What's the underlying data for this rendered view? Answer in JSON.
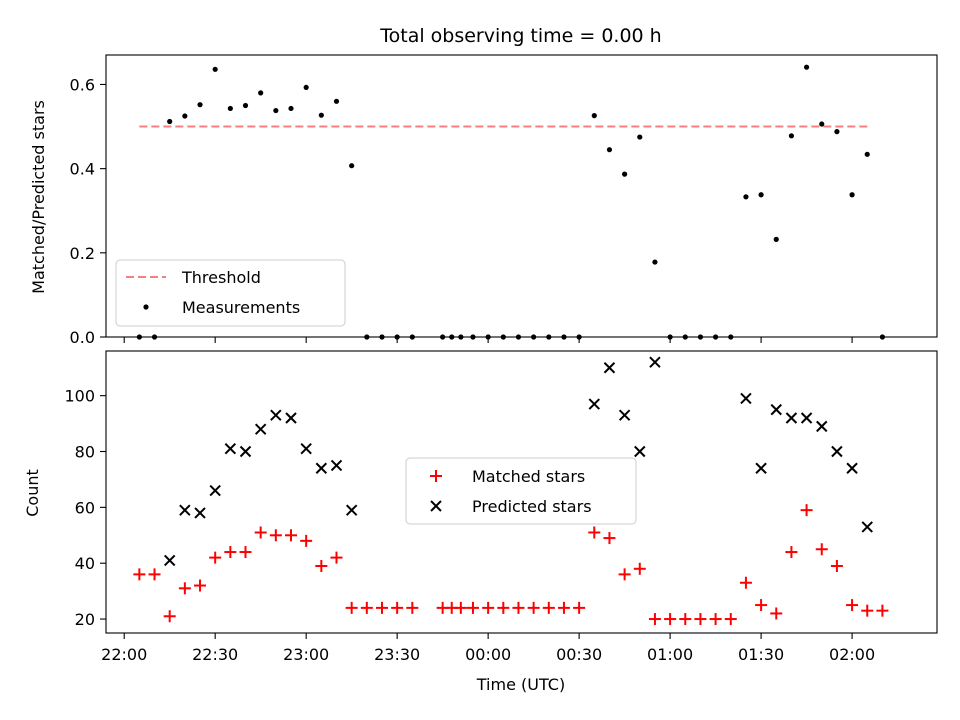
{
  "chart_data": [
    {
      "type": "scatter",
      "title": "Total observing time = 0.00 h",
      "xlabel": "",
      "ylabel": "Matched/Predicted stars",
      "xlim": [
        "21:54",
        "02:28"
      ],
      "ylim": [
        0,
        0.67
      ],
      "yticks": [
        0.0,
        0.2,
        0.4,
        0.6
      ],
      "ytick_labels": [
        "0.0",
        "0.2",
        "0.4",
        "0.6"
      ],
      "legend_position": "lower-left",
      "series": [
        {
          "name": "Threshold",
          "kind": "dashed-line",
          "color": "#f77f7f",
          "points": [
            {
              "x": "22:05",
              "y": 0.5
            },
            {
              "x": "02:05",
              "y": 0.5
            }
          ]
        },
        {
          "name": "Measurements",
          "kind": "dots",
          "color": "#000000",
          "points": [
            {
              "x": "22:05",
              "y": 0.0
            },
            {
              "x": "22:10",
              "y": 0.0
            },
            {
              "x": "22:15",
              "y": 0.512
            },
            {
              "x": "22:20",
              "y": 0.525
            },
            {
              "x": "22:25",
              "y": 0.552
            },
            {
              "x": "22:30",
              "y": 0.636
            },
            {
              "x": "22:35",
              "y": 0.543
            },
            {
              "x": "22:40",
              "y": 0.55
            },
            {
              "x": "22:45",
              "y": 0.58
            },
            {
              "x": "22:50",
              "y": 0.538
            },
            {
              "x": "22:55",
              "y": 0.543
            },
            {
              "x": "23:00",
              "y": 0.593
            },
            {
              "x": "23:05",
              "y": 0.527
            },
            {
              "x": "23:10",
              "y": 0.56
            },
            {
              "x": "23:15",
              "y": 0.407
            },
            {
              "x": "23:20",
              "y": 0.0
            },
            {
              "x": "23:25",
              "y": 0.0
            },
            {
              "x": "23:30",
              "y": 0.0
            },
            {
              "x": "23:35",
              "y": 0.0
            },
            {
              "x": "23:45",
              "y": 0.0
            },
            {
              "x": "23:48",
              "y": 0.0
            },
            {
              "x": "23:51",
              "y": 0.0
            },
            {
              "x": "23:55",
              "y": 0.0
            },
            {
              "x": "00:00",
              "y": 0.0
            },
            {
              "x": "00:05",
              "y": 0.0
            },
            {
              "x": "00:10",
              "y": 0.0
            },
            {
              "x": "00:15",
              "y": 0.0
            },
            {
              "x": "00:20",
              "y": 0.0
            },
            {
              "x": "00:25",
              "y": 0.0
            },
            {
              "x": "00:30",
              "y": 0.0
            },
            {
              "x": "00:35",
              "y": 0.526
            },
            {
              "x": "00:40",
              "y": 0.445
            },
            {
              "x": "00:45",
              "y": 0.387
            },
            {
              "x": "00:50",
              "y": 0.475
            },
            {
              "x": "00:55",
              "y": 0.178
            },
            {
              "x": "01:00",
              "y": 0.0
            },
            {
              "x": "01:05",
              "y": 0.0
            },
            {
              "x": "01:10",
              "y": 0.0
            },
            {
              "x": "01:15",
              "y": 0.0
            },
            {
              "x": "01:20",
              "y": 0.0
            },
            {
              "x": "01:25",
              "y": 0.333
            },
            {
              "x": "01:30",
              "y": 0.338
            },
            {
              "x": "01:35",
              "y": 0.232
            },
            {
              "x": "01:40",
              "y": 0.478
            },
            {
              "x": "01:45",
              "y": 0.641
            },
            {
              "x": "01:50",
              "y": 0.506
            },
            {
              "x": "01:55",
              "y": 0.488
            },
            {
              "x": "02:00",
              "y": 0.338
            },
            {
              "x": "02:05",
              "y": 0.434
            },
            {
              "x": "02:10",
              "y": 0.0
            }
          ]
        }
      ]
    },
    {
      "type": "scatter",
      "title": "",
      "xlabel": "Time (UTC)",
      "ylabel": "Count",
      "xlim": [
        "21:54",
        "02:28"
      ],
      "ylim": [
        15,
        116
      ],
      "xticks": [
        "22:00",
        "22:30",
        "23:00",
        "23:30",
        "00:00",
        "00:30",
        "01:00",
        "01:30",
        "02:00"
      ],
      "yticks": [
        20,
        40,
        60,
        80,
        100
      ],
      "ytick_labels": [
        "20",
        "40",
        "60",
        "80",
        "100"
      ],
      "legend_position": "center",
      "series": [
        {
          "name": "Matched stars",
          "kind": "plus",
          "color": "#ff0000",
          "points": [
            {
              "x": "22:05",
              "y": 36
            },
            {
              "x": "22:10",
              "y": 36
            },
            {
              "x": "22:15",
              "y": 21
            },
            {
              "x": "22:20",
              "y": 31
            },
            {
              "x": "22:25",
              "y": 32
            },
            {
              "x": "22:30",
              "y": 42
            },
            {
              "x": "22:35",
              "y": 44
            },
            {
              "x": "22:40",
              "y": 44
            },
            {
              "x": "22:45",
              "y": 51
            },
            {
              "x": "22:50",
              "y": 50
            },
            {
              "x": "22:55",
              "y": 50
            },
            {
              "x": "23:00",
              "y": 48
            },
            {
              "x": "23:05",
              "y": 39
            },
            {
              "x": "23:10",
              "y": 42
            },
            {
              "x": "23:15",
              "y": 24
            },
            {
              "x": "23:20",
              "y": 24
            },
            {
              "x": "23:25",
              "y": 24
            },
            {
              "x": "23:30",
              "y": 24
            },
            {
              "x": "23:35",
              "y": 24
            },
            {
              "x": "23:45",
              "y": 24
            },
            {
              "x": "23:48",
              "y": 24
            },
            {
              "x": "23:51",
              "y": 24
            },
            {
              "x": "23:55",
              "y": 24
            },
            {
              "x": "00:00",
              "y": 24
            },
            {
              "x": "00:05",
              "y": 24
            },
            {
              "x": "00:10",
              "y": 24
            },
            {
              "x": "00:15",
              "y": 24
            },
            {
              "x": "00:20",
              "y": 24
            },
            {
              "x": "00:25",
              "y": 24
            },
            {
              "x": "00:30",
              "y": 24
            },
            {
              "x": "00:35",
              "y": 51
            },
            {
              "x": "00:40",
              "y": 49
            },
            {
              "x": "00:45",
              "y": 36
            },
            {
              "x": "00:50",
              "y": 38
            },
            {
              "x": "00:55",
              "y": 20
            },
            {
              "x": "01:00",
              "y": 20
            },
            {
              "x": "01:05",
              "y": 20
            },
            {
              "x": "01:10",
              "y": 20
            },
            {
              "x": "01:15",
              "y": 20
            },
            {
              "x": "01:20",
              "y": 20
            },
            {
              "x": "01:25",
              "y": 33
            },
            {
              "x": "01:30",
              "y": 25
            },
            {
              "x": "01:35",
              "y": 22
            },
            {
              "x": "01:40",
              "y": 44
            },
            {
              "x": "01:45",
              "y": 59
            },
            {
              "x": "01:50",
              "y": 45
            },
            {
              "x": "01:55",
              "y": 39
            },
            {
              "x": "02:00",
              "y": 25
            },
            {
              "x": "02:05",
              "y": 23
            },
            {
              "x": "02:10",
              "y": 23
            }
          ]
        },
        {
          "name": "Predicted stars",
          "kind": "x",
          "color": "#000000",
          "points": [
            {
              "x": "22:15",
              "y": 41
            },
            {
              "x": "22:20",
              "y": 59
            },
            {
              "x": "22:25",
              "y": 58
            },
            {
              "x": "22:30",
              "y": 66
            },
            {
              "x": "22:35",
              "y": 81
            },
            {
              "x": "22:40",
              "y": 80
            },
            {
              "x": "22:45",
              "y": 88
            },
            {
              "x": "22:50",
              "y": 93
            },
            {
              "x": "22:55",
              "y": 92
            },
            {
              "x": "23:00",
              "y": 81
            },
            {
              "x": "23:05",
              "y": 74
            },
            {
              "x": "23:10",
              "y": 75
            },
            {
              "x": "23:15",
              "y": 59
            },
            {
              "x": "00:35",
              "y": 97
            },
            {
              "x": "00:40",
              "y": 110
            },
            {
              "x": "00:45",
              "y": 93
            },
            {
              "x": "00:50",
              "y": 80
            },
            {
              "x": "00:55",
              "y": 112
            },
            {
              "x": "01:25",
              "y": 99
            },
            {
              "x": "01:30",
              "y": 74
            },
            {
              "x": "01:35",
              "y": 95
            },
            {
              "x": "01:40",
              "y": 92
            },
            {
              "x": "01:45",
              "y": 92
            },
            {
              "x": "01:50",
              "y": 89
            },
            {
              "x": "01:55",
              "y": 80
            },
            {
              "x": "02:00",
              "y": 74
            },
            {
              "x": "02:05",
              "y": 53
            }
          ]
        }
      ]
    }
  ]
}
